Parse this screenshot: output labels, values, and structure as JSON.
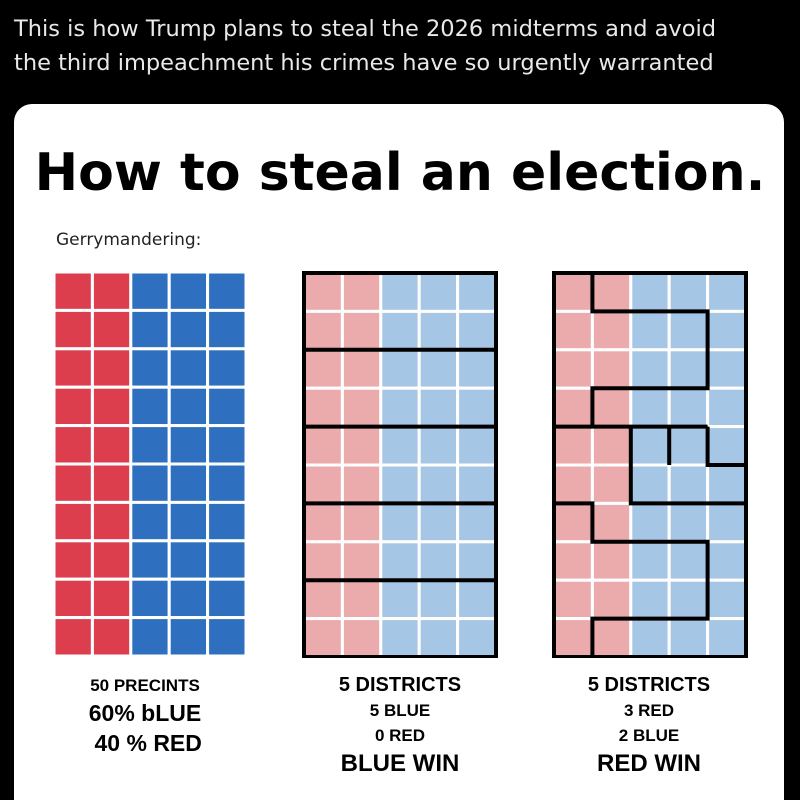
{
  "post": {
    "line1": "This is how Trump plans to steal the 2026 midterms and avoid",
    "line2": "the third impeachment his crimes have so urgently warranted"
  },
  "card": {
    "title": "How to steal an election.",
    "subtitle": "Gerrymandering:"
  },
  "colors": {
    "red": "#dd3e4d",
    "blue": "#2e6fbf",
    "light_red": "#ebaaab",
    "light_blue": "#a6c6e5",
    "background": "#000000",
    "card": "#ffffff"
  },
  "panels": [
    {
      "id": "precincts",
      "grid": {
        "columns": 5,
        "rows": 10,
        "red_columns": 2,
        "blue_columns": 3
      },
      "captions": [
        "50 PRECINTS",
        "60% bLUE",
        " 40 % RED"
      ]
    },
    {
      "id": "fair-districts",
      "grid": {
        "columns": 5,
        "rows": 10,
        "red_columns": 2,
        "blue_columns": 3
      },
      "district_split": "horizontal bands of 2 rows",
      "captions": [
        "5 DISTRICTS",
        "5 BLUE",
        "0 RED",
        "BLUE WIN"
      ]
    },
    {
      "id": "gerrymandered-districts",
      "grid": {
        "columns": 5,
        "rows": 10,
        "red_columns": 2,
        "blue_columns": 3
      },
      "district_split": "interlocking",
      "captions": [
        "5 DISTRICTS",
        "3 RED",
        "2 BLUE",
        "RED WIN"
      ]
    }
  ]
}
